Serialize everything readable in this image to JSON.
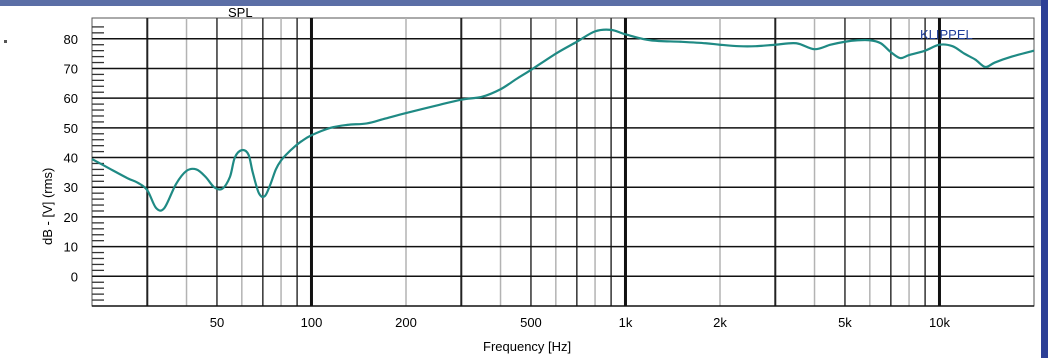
{
  "chart_data": {
    "type": "line",
    "title": "SPL",
    "brand": "KLIPPEL",
    "xlabel": "Frequency [Hz]",
    "ylabel": "dB - [V] (rms)",
    "x_scale": "log",
    "xlim": [
      20,
      20000
    ],
    "ylim": [
      -10,
      87
    ],
    "grid": true,
    "y_ticks": [
      0,
      10,
      20,
      30,
      40,
      50,
      60,
      70,
      80
    ],
    "y_tick_labels": [
      "0",
      "10",
      "20",
      "30",
      "40",
      "50",
      "60",
      "70",
      "80"
    ],
    "x_ticks": [
      50,
      100,
      200,
      500,
      1000,
      2000,
      5000,
      10000
    ],
    "x_tick_labels": [
      "50",
      "100",
      "200",
      "500",
      "1k",
      "2k",
      "5k",
      "10k"
    ],
    "series": [
      {
        "color": "#1f8a84",
        "x": [
          20,
          23,
          26,
          28,
          30,
          32,
          34,
          37,
          40,
          43,
          46,
          49,
          52,
          55,
          57,
          60,
          63,
          65,
          68,
          71,
          74,
          77,
          80,
          84,
          88,
          93,
          100,
          115,
          130,
          150,
          170,
          200,
          250,
          300,
          350,
          400,
          450,
          500,
          600,
          700,
          800,
          900,
          1000,
          1200,
          1500,
          1800,
          2000,
          2300,
          2600,
          3000,
          3500,
          4000,
          4500,
          5000,
          5500,
          6000,
          6500,
          7000,
          7500,
          8000,
          9000,
          10000,
          11000,
          12000,
          13000,
          14000,
          15000,
          17000,
          20000
        ],
        "y": [
          39.5,
          36,
          33,
          31.5,
          29,
          23,
          23,
          31,
          35.5,
          36,
          33.5,
          30,
          29.5,
          33.5,
          40,
          42.5,
          41,
          35,
          28,
          27,
          31,
          36,
          39,
          41.5,
          43.5,
          45.5,
          47.5,
          50,
          51,
          51.5,
          53,
          55,
          57.5,
          59.5,
          60.5,
          63,
          66.5,
          69.5,
          75,
          79,
          82.5,
          83,
          81.5,
          79.5,
          79,
          78.5,
          78,
          77.5,
          77.5,
          78,
          78.5,
          76.5,
          78,
          79,
          79.5,
          79.5,
          78.5,
          75.5,
          73.5,
          74.5,
          76,
          78,
          77.5,
          75,
          73,
          70.5,
          72,
          74,
          76
        ]
      }
    ]
  }
}
